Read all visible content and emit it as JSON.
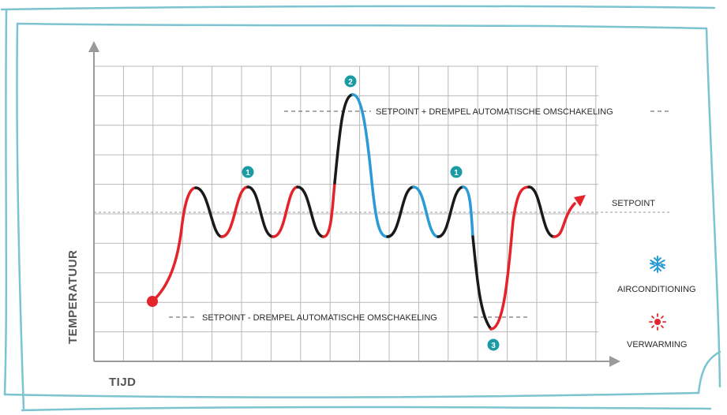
{
  "axes": {
    "x_label": "TIJD",
    "y_label": "TEMPERATUUR"
  },
  "lines": {
    "setpoint": "SETPOINT",
    "upper": "SETPOINT + DREMPEL AUTOMATISCHE OMSCHAKELING",
    "lower": "SETPOINT - DREMPEL AUTOMATISCHE OMSCHAKELING"
  },
  "badges": {
    "b1": "1",
    "b2": "2",
    "b3": "3"
  },
  "legend": {
    "cooling_icon": "snowflake-icon",
    "cooling_label": "AIRCONDITIONING",
    "heating_icon": "sun-icon",
    "heating_label": "VERWARMING"
  },
  "colors": {
    "heating": "#e4232b",
    "cooling": "#2a9bd6",
    "idle": "#1a1a1a",
    "badge": "#1a9ba6",
    "frame": "#7cc4d0",
    "grid": "#b8b8b8"
  }
}
